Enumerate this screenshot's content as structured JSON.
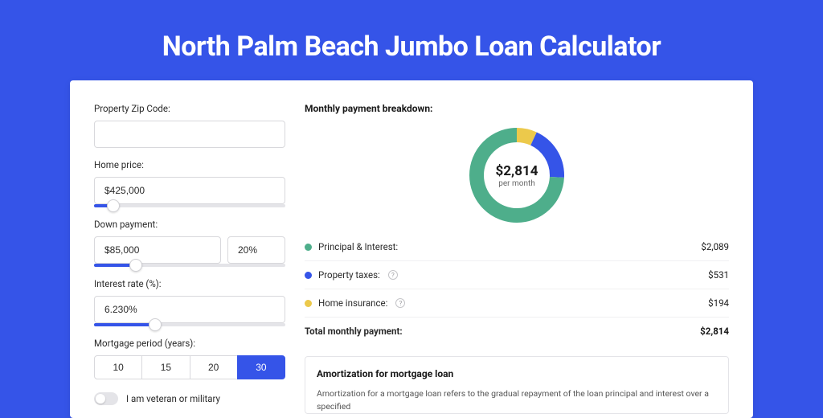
{
  "title": "North Palm Beach Jumbo Loan Calculator",
  "colors": {
    "page_bg": "#3554e8",
    "card_bg": "#ffffff",
    "accent": "#3554e8",
    "slider_fill": "#3554e8",
    "slider_track": "#e4e4e8",
    "text_primary": "#1a1a1a",
    "text_body": "#2b2b2b",
    "border": "#d8d8dc",
    "divider": "#f0f0f2"
  },
  "form": {
    "zip": {
      "label": "Property Zip Code:",
      "value": ""
    },
    "home_price": {
      "label": "Home price:",
      "value": "$425,000",
      "slider_pct": 10
    },
    "down_payment": {
      "label": "Down payment:",
      "value": "$85,000",
      "pct_value": "20%",
      "slider_pct": 22
    },
    "interest_rate": {
      "label": "Interest rate (%):",
      "value": "6.230%",
      "slider_pct": 32
    },
    "mortgage_period": {
      "label": "Mortgage period (years):",
      "options": [
        "10",
        "15",
        "20",
        "30"
      ],
      "selected": "30"
    },
    "veteran_toggle": {
      "label": "I am veteran or military",
      "on": false
    }
  },
  "breakdown": {
    "title": "Monthly payment breakdown:",
    "center_amount": "$2,814",
    "center_sub": "per month",
    "donut": {
      "ring_width": 18,
      "radius": 50,
      "segments": [
        {
          "key": "principal_interest",
          "label": "Principal & Interest:",
          "value": "$2,089",
          "num": 2089,
          "color": "#4eae8b",
          "has_info": false
        },
        {
          "key": "property_taxes",
          "label": "Property taxes:",
          "value": "$531",
          "num": 531,
          "color": "#3554e8",
          "has_info": true
        },
        {
          "key": "home_insurance",
          "label": "Home insurance:",
          "value": "$194",
          "num": 194,
          "color": "#ecc94b",
          "has_info": true
        }
      ]
    },
    "total": {
      "label": "Total monthly payment:",
      "value": "$2,814"
    }
  },
  "amortization": {
    "title": "Amortization for mortgage loan",
    "body": "Amortization for a mortgage loan refers to the gradual repayment of the loan principal and interest over a specified"
  }
}
